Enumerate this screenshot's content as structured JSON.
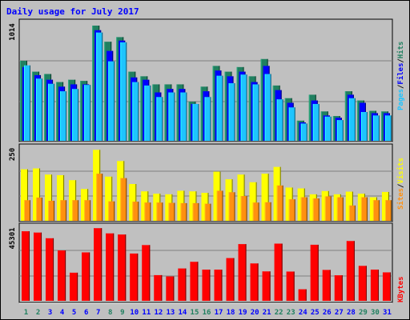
{
  "title": "Daily usage for July 2017",
  "colors": {
    "background": "#c0c0c0",
    "pages": "#1ec4ff",
    "files": "#0000ff",
    "hits": "#208060",
    "visits": "#ffff00",
    "sites": "#ff9010",
    "kbytes": "#ff0000",
    "title": "#0000ff",
    "day_weekday": "#208060",
    "day_default": "#0000ff"
  },
  "legends": {
    "top": [
      {
        "text": "Pages",
        "color": "#1ec4ff"
      },
      {
        "text": "/",
        "color": "#000000"
      },
      {
        "text": "Files",
        "color": "#0000ff"
      },
      {
        "text": "/",
        "color": "#000000"
      },
      {
        "text": "Hits",
        "color": "#208060"
      }
    ],
    "mid": [
      {
        "text": "Sites",
        "color": "#ff9010"
      },
      {
        "text": "/",
        "color": "#000000"
      },
      {
        "text": "Visits",
        "color": "#ffff00"
      }
    ],
    "bot": [
      {
        "text": "KBytes",
        "color": "#ff0000"
      }
    ]
  },
  "chart_data": [
    {
      "type": "bar",
      "panel": "hits-files-pages",
      "ymax_label": "1014",
      "ylim": [
        0,
        1014
      ],
      "categories": [
        "1",
        "2",
        "3",
        "4",
        "5",
        "6",
        "7",
        "8",
        "9",
        "10",
        "11",
        "12",
        "13",
        "14",
        "15",
        "16",
        "17",
        "18",
        "19",
        "20",
        "21",
        "22",
        "23",
        "24",
        "25",
        "26",
        "27",
        "28",
        "29",
        "30",
        "31"
      ],
      "series": [
        {
          "name": "Hits",
          "values": [
            695,
            600,
            580,
            510,
            530,
            520,
            1000,
            860,
            900,
            600,
            560,
            490,
            490,
            490,
            340,
            470,
            650,
            600,
            640,
            560,
            710,
            480,
            370,
            175,
            400,
            255,
            215,
            430,
            350,
            260,
            255
          ]
        },
        {
          "name": "Files",
          "values": [
            640,
            570,
            530,
            470,
            490,
            490,
            960,
            780,
            870,
            550,
            530,
            420,
            450,
            450,
            320,
            430,
            610,
            560,
            600,
            510,
            650,
            440,
            330,
            160,
            350,
            220,
            200,
            400,
            330,
            240,
            240
          ]
        },
        {
          "name": "Pages",
          "values": [
            655,
            540,
            495,
            430,
            450,
            485,
            940,
            690,
            855,
            510,
            480,
            380,
            420,
            420,
            320,
            380,
            565,
            500,
            575,
            490,
            580,
            360,
            290,
            150,
            320,
            210,
            180,
            370,
            250,
            220,
            220
          ]
        }
      ]
    },
    {
      "type": "bar",
      "panel": "visits-sites",
      "ymax_label": "250",
      "ylim": [
        0,
        250
      ],
      "categories": [
        "1",
        "2",
        "3",
        "4",
        "5",
        "6",
        "7",
        "8",
        "9",
        "10",
        "11",
        "12",
        "13",
        "14",
        "15",
        "16",
        "17",
        "18",
        "19",
        "20",
        "21",
        "22",
        "23",
        "24",
        "25",
        "26",
        "27",
        "28",
        "29",
        "30",
        "31"
      ],
      "series": [
        {
          "name": "Visits",
          "values": [
            175,
            178,
            157,
            155,
            138,
            108,
            241,
            150,
            203,
            125,
            100,
            92,
            90,
            102,
            100,
            95,
            167,
            141,
            157,
            131,
            160,
            183,
            113,
            110,
            90,
            101,
            90,
            99,
            92,
            80,
            98
          ]
        },
        {
          "name": "Sites",
          "values": [
            70,
            79,
            68,
            70,
            70,
            70,
            160,
            66,
            145,
            65,
            62,
            62,
            61,
            60,
            60,
            58,
            102,
            97,
            84,
            62,
            63,
            120,
            73,
            80,
            76,
            83,
            80,
            52,
            80,
            70,
            70
          ]
        }
      ]
    },
    {
      "type": "bar",
      "panel": "kbytes",
      "ymax_label": "45301",
      "ylim": [
        0,
        45301
      ],
      "categories": [
        "1",
        "2",
        "3",
        "4",
        "5",
        "6",
        "7",
        "8",
        "9",
        "10",
        "11",
        "12",
        "13",
        "14",
        "15",
        "16",
        "17",
        "18",
        "19",
        "20",
        "21",
        "22",
        "23",
        "24",
        "25",
        "26",
        "27",
        "28",
        "29",
        "30",
        "31"
      ],
      "series": [
        {
          "name": "KBytes",
          "values": [
            42800,
            42000,
            38500,
            31000,
            17300,
            29800,
            44700,
            41500,
            40800,
            29100,
            34300,
            15800,
            15000,
            19900,
            24000,
            19200,
            19200,
            26300,
            34900,
            23000,
            18100,
            35200,
            18000,
            7100,
            34500,
            19000,
            15700,
            36800,
            21500,
            19200,
            17500
          ]
        }
      ]
    }
  ],
  "days": [
    {
      "label": "1",
      "weekend": true
    },
    {
      "label": "2",
      "weekend": true
    },
    {
      "label": "3",
      "weekend": false
    },
    {
      "label": "4",
      "weekend": false
    },
    {
      "label": "5",
      "weekend": false
    },
    {
      "label": "6",
      "weekend": false
    },
    {
      "label": "7",
      "weekend": false
    },
    {
      "label": "8",
      "weekend": true
    },
    {
      "label": "9",
      "weekend": true
    },
    {
      "label": "10",
      "weekend": false
    },
    {
      "label": "11",
      "weekend": false
    },
    {
      "label": "12",
      "weekend": false
    },
    {
      "label": "13",
      "weekend": false
    },
    {
      "label": "14",
      "weekend": false
    },
    {
      "label": "15",
      "weekend": true
    },
    {
      "label": "16",
      "weekend": true
    },
    {
      "label": "17",
      "weekend": false
    },
    {
      "label": "18",
      "weekend": false
    },
    {
      "label": "19",
      "weekend": false
    },
    {
      "label": "20",
      "weekend": false
    },
    {
      "label": "21",
      "weekend": false
    },
    {
      "label": "22",
      "weekend": true
    },
    {
      "label": "23",
      "weekend": true
    },
    {
      "label": "24",
      "weekend": false
    },
    {
      "label": "25",
      "weekend": false
    },
    {
      "label": "26",
      "weekend": false
    },
    {
      "label": "27",
      "weekend": false
    },
    {
      "label": "28",
      "weekend": false
    },
    {
      "label": "29",
      "weekend": true
    },
    {
      "label": "30",
      "weekend": true
    },
    {
      "label": "31",
      "weekend": false
    }
  ]
}
